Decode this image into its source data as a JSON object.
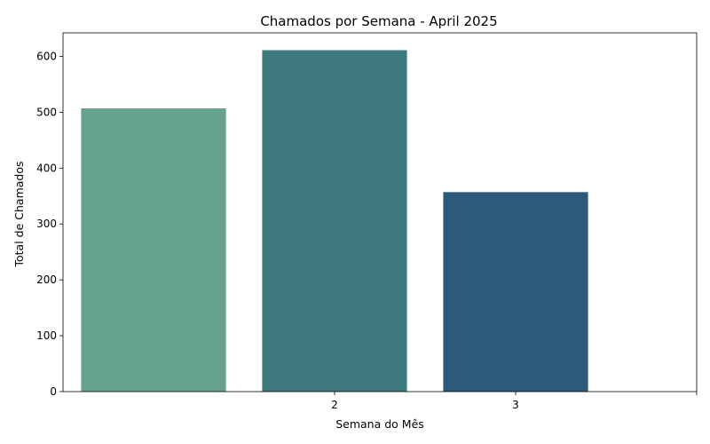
{
  "chart_data": {
    "type": "bar",
    "title": "Chamados por Semana - April 2025",
    "xlabel": "Semana do Mês",
    "ylabel": "Total de Chamados",
    "x_tick_labels": [
      "",
      "2",
      "3",
      ""
    ],
    "values": [
      507,
      611,
      357
    ],
    "colors": [
      "#67a28e",
      "#3e7a80",
      "#2b5a7a"
    ],
    "ylim": [
      0,
      642
    ],
    "yticks": [
      0,
      100,
      200,
      300,
      400,
      500,
      600
    ],
    "grid": false,
    "legend": "none"
  }
}
